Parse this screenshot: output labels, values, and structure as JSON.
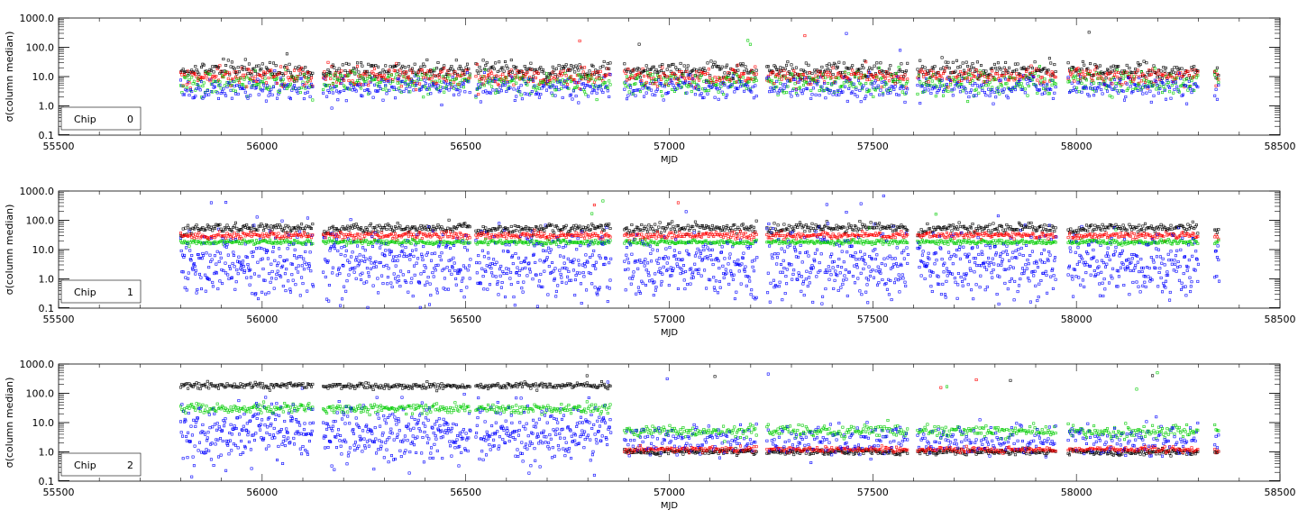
{
  "chart_data": [
    {
      "type": "scatter",
      "title": "",
      "xlabel": "MJD",
      "ylabel": "σ(column median)",
      "xlim": [
        55500,
        58500
      ],
      "ylim": [
        0.1,
        1000.0
      ],
      "yscale": "log",
      "x_ticks": [
        "55500",
        "56000",
        "56500",
        "57000",
        "57500",
        "58000",
        "58500"
      ],
      "y_ticks": [
        "0.1",
        "1.0",
        "10.0",
        "100.0",
        "1000.0"
      ],
      "legend": {
        "label": "Chip",
        "value": "0"
      },
      "segments": [
        [
          55800,
          56125
        ],
        [
          56150,
          56510
        ],
        [
          56525,
          56855
        ],
        [
          56890,
          57215
        ],
        [
          57240,
          57585
        ],
        [
          57610,
          57950
        ],
        [
          57980,
          58300
        ],
        [
          58340,
          58350
        ]
      ],
      "series": [
        {
          "name": "black",
          "color": "#000000",
          "level": 16,
          "ramp": 1.0,
          "spread": 0.15
        },
        {
          "name": "red",
          "color": "#ff0000",
          "level": 10,
          "ramp": 1.0,
          "spread": 0.15
        },
        {
          "name": "green",
          "color": "#00cc00",
          "level": 6,
          "ramp": 1.0,
          "spread": 0.2
        },
        {
          "name": "blue",
          "color": "#0000ff",
          "level": 4,
          "ramp": 1.0,
          "spread": 0.2
        }
      ]
    },
    {
      "type": "scatter",
      "title": "",
      "xlabel": "MJD",
      "ylabel": "σ(column median)",
      "xlim": [
        55500,
        58500
      ],
      "ylim": [
        0.1,
        1000.0
      ],
      "yscale": "log",
      "x_ticks": [
        "55500",
        "56000",
        "56500",
        "57000",
        "57500",
        "58000",
        "58500"
      ],
      "y_ticks": [
        "0.1",
        "1.0",
        "10.0",
        "100.0",
        "1000.0"
      ],
      "legend": {
        "label": "Chip",
        "value": "1"
      },
      "segments": [
        [
          55800,
          56125
        ],
        [
          56150,
          56510
        ],
        [
          56525,
          56855
        ],
        [
          56890,
          57215
        ],
        [
          57240,
          57585
        ],
        [
          57610,
          57950
        ],
        [
          57980,
          58300
        ],
        [
          58340,
          58350
        ]
      ],
      "series": [
        {
          "name": "black",
          "color": "#000000",
          "level": 55,
          "ramp": 0.75,
          "spread": 0.08
        },
        {
          "name": "red",
          "color": "#ff0000",
          "level": 30,
          "ramp": 1.0,
          "spread": 0.06
        },
        {
          "name": "green",
          "color": "#00cc00",
          "level": 18,
          "ramp": 1.0,
          "spread": 0.04
        },
        {
          "name": "blue",
          "color": "#0000ff",
          "level": 3,
          "ramp": 1.0,
          "spread": 0.55
        }
      ]
    },
    {
      "type": "scatter",
      "title": "",
      "xlabel": "MJD",
      "ylabel": "σ(column median)",
      "xlim": [
        55500,
        58500
      ],
      "ylim": [
        0.1,
        1000.0
      ],
      "yscale": "log",
      "x_ticks": [
        "55500",
        "56000",
        "56500",
        "57000",
        "57500",
        "58000",
        "58500"
      ],
      "y_ticks": [
        "0.1",
        "1.0",
        "10.0",
        "100.0",
        "1000.0"
      ],
      "legend": {
        "label": "Chip",
        "value": "2"
      },
      "segments": [
        [
          55800,
          56125
        ],
        [
          56150,
          56510
        ],
        [
          56525,
          56855
        ],
        [
          56890,
          57215
        ],
        [
          57240,
          57585
        ],
        [
          57610,
          57950
        ],
        [
          57980,
          58300
        ],
        [
          58340,
          58350
        ]
      ],
      "series": [
        {
          "name": "black",
          "color": "#000000",
          "level": 1.0,
          "ramp": 1.0,
          "spread": 0.05
        },
        {
          "name": "red",
          "color": "#ff0000",
          "level": 1.2,
          "ramp": 1.0,
          "spread": 0.05
        },
        {
          "name": "green",
          "color": "#00cc00",
          "level": 5,
          "ramp": 1.0,
          "spread": 0.1
        },
        {
          "name": "blue",
          "color": "#0000ff",
          "level": 2.5,
          "ramp": 1.0,
          "spread": 0.25
        }
      ],
      "early_series": [
        {
          "name": "black",
          "color": "#000000",
          "level": 180,
          "spread": 0.05
        },
        {
          "name": "green",
          "color": "#00cc00",
          "level": 30,
          "spread": 0.08
        },
        {
          "name": "blue",
          "color": "#0000ff",
          "level": 4,
          "spread": 0.5
        }
      ],
      "early_end": 56860
    }
  ]
}
